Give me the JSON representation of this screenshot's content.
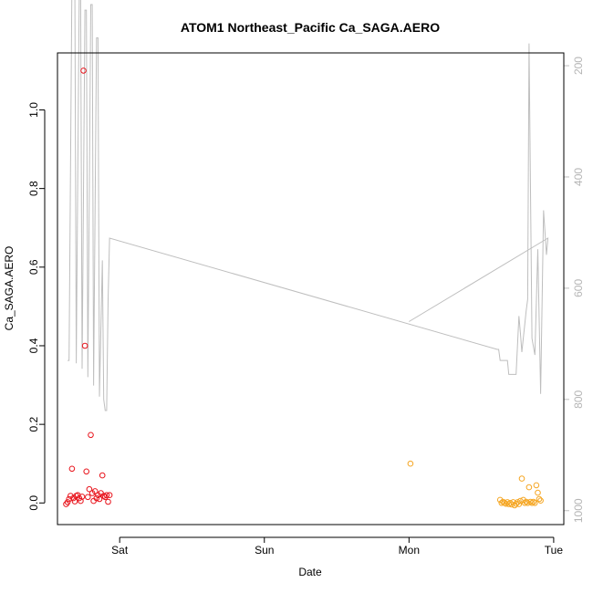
{
  "chart_data": {
    "type": "scatter",
    "title": "ATOM1 Northeast_Pacific Ca_SAGA.AERO",
    "xlabel": "Date",
    "ylabel": "Ca_SAGA.AERO",
    "x_axis": {
      "type": "date",
      "range_days": [
        -0.43,
        3.07
      ],
      "tick_labels": [
        "Sat",
        "Sun",
        "Mon",
        "Tue"
      ],
      "tick_positions_days": [
        0,
        1,
        2,
        3
      ]
    },
    "y_axis": {
      "ylim": [
        -0.055,
        1.145
      ],
      "tick_values": [
        0.0,
        0.2,
        0.4,
        0.6,
        0.8,
        1.0
      ],
      "tick_labels": [
        "0.0",
        "0.2",
        "0.4",
        "0.6",
        "0.8",
        "1.0"
      ]
    },
    "y_axis_right": {
      "reversed": true,
      "range": [
        1025,
        177
      ],
      "tick_values": [
        200,
        400,
        600,
        800,
        1000
      ],
      "tick_labels": [
        "200",
        "400",
        "600",
        "800",
        "1000"
      ],
      "color": "#bebebe"
    },
    "grid": false,
    "legend": "none",
    "series": [
      {
        "color": "#e8141c",
        "marker": "circle",
        "points": [
          [
            -0.37,
            -0.003
          ],
          [
            -0.36,
            0.002
          ],
          [
            -0.35,
            0.01
          ],
          [
            -0.34,
            0.018
          ],
          [
            -0.33,
            0.087
          ],
          [
            -0.32,
            0.012
          ],
          [
            -0.31,
            0.004
          ],
          [
            -0.3,
            0.018
          ],
          [
            -0.29,
            0.02
          ],
          [
            -0.28,
            0.012
          ],
          [
            -0.27,
            0.005
          ],
          [
            -0.26,
            0.016
          ],
          [
            -0.25,
            1.1
          ],
          [
            -0.24,
            0.4
          ],
          [
            -0.23,
            0.08
          ],
          [
            -0.22,
            0.015
          ],
          [
            -0.21,
            0.035
          ],
          [
            -0.2,
            0.173
          ],
          [
            -0.19,
            0.025
          ],
          [
            -0.18,
            0.005
          ],
          [
            -0.17,
            0.03
          ],
          [
            -0.16,
            0.012
          ],
          [
            -0.15,
            0.02
          ],
          [
            -0.14,
            0.01
          ],
          [
            -0.13,
            0.025
          ],
          [
            -0.12,
            0.07
          ],
          [
            -0.11,
            0.018
          ],
          [
            -0.1,
            0.015
          ],
          [
            -0.09,
            0.02
          ],
          [
            -0.08,
            0.003
          ],
          [
            -0.07,
            0.02
          ]
        ]
      },
      {
        "color": "#f5a623",
        "marker": "circle",
        "points": [
          [
            2.01,
            0.1
          ],
          [
            2.63,
            0.008
          ],
          [
            2.64,
            0.0
          ],
          [
            2.65,
            0.003
          ],
          [
            2.66,
            0.0
          ],
          [
            2.67,
            -0.002
          ],
          [
            2.68,
            0.002
          ],
          [
            2.69,
            -0.003
          ],
          [
            2.7,
            0.0
          ],
          [
            2.71,
            -0.004
          ],
          [
            2.72,
            0.002
          ],
          [
            2.73,
            -0.006
          ],
          [
            2.74,
            -0.002
          ],
          [
            2.75,
            0.002
          ],
          [
            2.76,
            -0.003
          ],
          [
            2.77,
            0.005
          ],
          [
            2.78,
            0.062
          ],
          [
            2.79,
            0.008
          ],
          [
            2.8,
            0.0
          ],
          [
            2.81,
            0.003
          ],
          [
            2.82,
            0.0
          ],
          [
            2.83,
            0.04
          ],
          [
            2.84,
            0.003
          ],
          [
            2.85,
            0.0
          ],
          [
            2.86,
            0.003
          ],
          [
            2.87,
            0.0
          ],
          [
            2.88,
            0.045
          ],
          [
            2.89,
            0.026
          ],
          [
            2.9,
            0.01
          ],
          [
            2.91,
            0.006
          ]
        ]
      },
      {
        "color": "#bebebe",
        "type": "line",
        "axis": "right",
        "points": [
          [
            -0.36,
            730
          ],
          [
            -0.35,
            730
          ],
          [
            -0.33,
            40
          ],
          [
            -0.31,
            40
          ],
          [
            -0.3,
            735
          ],
          [
            -0.28,
            80
          ],
          [
            -0.27,
            80
          ],
          [
            -0.26,
            745
          ],
          [
            -0.24,
            100
          ],
          [
            -0.23,
            100
          ],
          [
            -0.22,
            760
          ],
          [
            -0.2,
            90
          ],
          [
            -0.19,
            90
          ],
          [
            -0.18,
            775
          ],
          [
            -0.16,
            150
          ],
          [
            -0.15,
            150
          ],
          [
            -0.14,
            795
          ],
          [
            -0.12,
            550
          ],
          [
            -0.11,
            800
          ],
          [
            -0.1,
            820
          ],
          [
            -0.09,
            820
          ],
          [
            -0.08,
            620
          ],
          [
            -0.07,
            510
          ],
          [
            2.61,
            710
          ],
          [
            2.62,
            710
          ],
          [
            2.63,
            730
          ],
          [
            2.68,
            730
          ],
          [
            2.69,
            755
          ],
          [
            2.74,
            755
          ],
          [
            2.76,
            650
          ],
          [
            2.77,
            680
          ],
          [
            2.78,
            715
          ],
          [
            2.81,
            640
          ],
          [
            2.82,
            620
          ],
          [
            2.83,
            160
          ],
          [
            2.85,
            690
          ],
          [
            2.87,
            720
          ],
          [
            2.89,
            530
          ],
          [
            2.91,
            790
          ],
          [
            2.93,
            460
          ],
          [
            2.95,
            540
          ],
          [
            2.96,
            510
          ],
          [
            2.0,
            660
          ]
        ]
      }
    ]
  }
}
